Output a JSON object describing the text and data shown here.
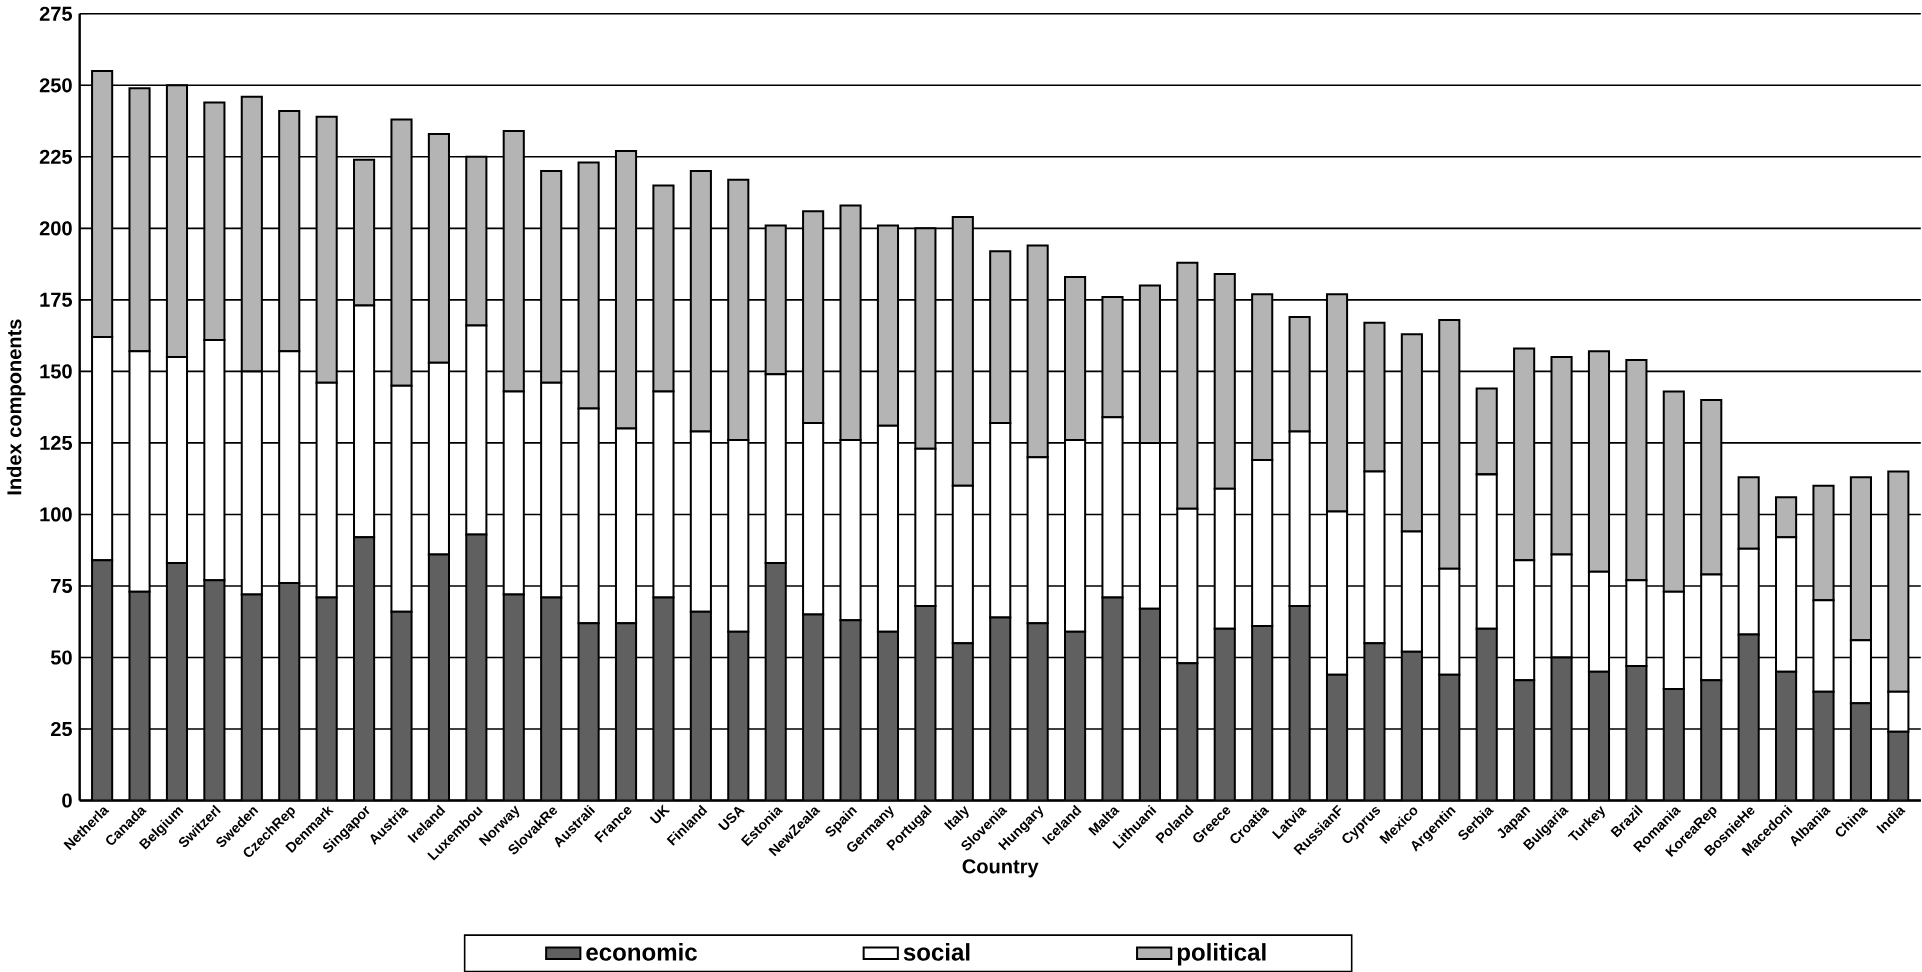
{
  "chart_data": {
    "type": "bar",
    "stacked": true,
    "xlabel": "Country",
    "ylabel": "Index components",
    "categories": [
      "Netherla",
      "Canada",
      "Belgium",
      "Switzerl",
      "Sweden",
      "CzechRep",
      "Denmark",
      "Singapor",
      "Austria",
      "Ireland",
      "Luxembou",
      "Norway",
      "SlovakRe",
      "Australi",
      "France",
      "UK",
      "Finland",
      "USA",
      "Estonia",
      "NewZeala",
      "Spain",
      "Germany",
      "Portugal",
      "Italy",
      "Slovenia",
      "Hungary",
      "Iceland",
      "Malta",
      "Lithuani",
      "Poland",
      "Greece",
      "Croatia",
      "Latvia",
      "RussianF",
      "Cyprus",
      "Mexico",
      "Argentin",
      "Serbia",
      "Japan",
      "Bulgaria",
      "Turkey",
      "Brazil",
      "Romania",
      "KoreaRep",
      "BosnieHe",
      "Macedoni",
      "Albania",
      "China",
      "India"
    ],
    "series": [
      {
        "name": "economic",
        "color": "#606060",
        "values": [
          84,
          73,
          83,
          77,
          72,
          76,
          71,
          92,
          66,
          86,
          93,
          72,
          71,
          62,
          62,
          71,
          66,
          59,
          83,
          65,
          63,
          59,
          68,
          55,
          64,
          62,
          59,
          71,
          67,
          48,
          60,
          61,
          68,
          44,
          55,
          52,
          44,
          60,
          42,
          50,
          45,
          47,
          39,
          42,
          58,
          45,
          38,
          34,
          24
        ]
      },
      {
        "name": "social",
        "color": "#ffffff",
        "values": [
          78,
          84,
          72,
          84,
          78,
          81,
          75,
          81,
          79,
          67,
          73,
          71,
          75,
          75,
          68,
          72,
          63,
          67,
          66,
          67,
          63,
          72,
          55,
          55,
          68,
          58,
          67,
          63,
          58,
          54,
          49,
          58,
          61,
          57,
          60,
          42,
          37,
          54,
          42,
          36,
          35,
          30,
          34,
          37,
          30,
          47,
          32,
          22,
          14
        ]
      },
      {
        "name": "political",
        "color": "#b4b4b4",
        "values": [
          93,
          92,
          95,
          83,
          96,
          84,
          93,
          51,
          93,
          80,
          59,
          91,
          74,
          86,
          97,
          72,
          91,
          91,
          52,
          74,
          82,
          70,
          77,
          94,
          60,
          74,
          57,
          42,
          55,
          86,
          75,
          58,
          40,
          76,
          52,
          69,
          87,
          30,
          74,
          69,
          77,
          77,
          70,
          61,
          25,
          14,
          40,
          57,
          77
        ]
      }
    ],
    "ylim": [
      0,
      275
    ],
    "yticks": [
      0,
      25,
      50,
      75,
      100,
      125,
      150,
      175,
      200,
      225,
      250,
      275
    ],
    "grid": "y",
    "legend": "bottom"
  }
}
